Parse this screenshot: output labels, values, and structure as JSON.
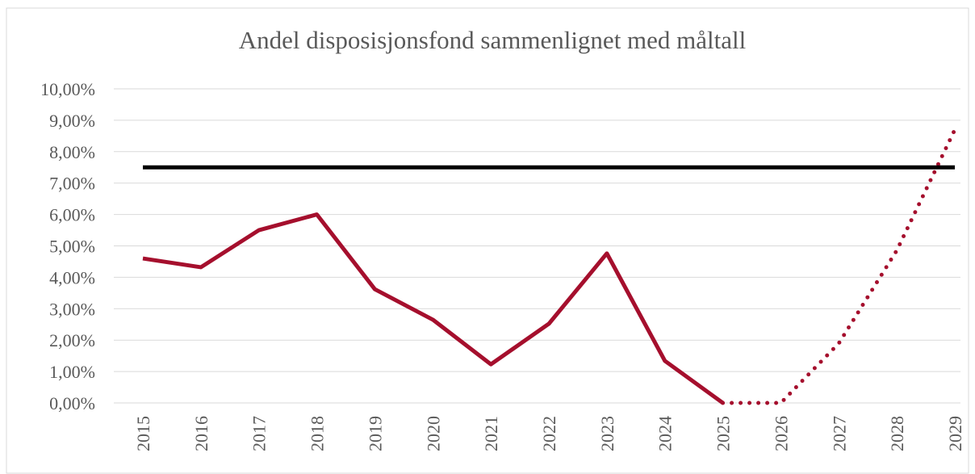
{
  "chart_data": {
    "type": "line",
    "title": "Andel disposisjonsfond sammenlignet med måltall",
    "categories": [
      "2015",
      "2016",
      "2017",
      "2018",
      "2019",
      "2020",
      "2021",
      "2022",
      "2023",
      "2024",
      "2025",
      "2026",
      "2027",
      "2028",
      "2029"
    ],
    "series": [
      {
        "color": "#a50f2d",
        "style": "solid",
        "values": [
          4.6,
          4.32,
          5.5,
          6.0,
          3.62,
          2.65,
          1.23,
          2.52,
          4.76,
          1.34,
          0,
          null,
          null,
          null,
          null
        ]
      },
      {
        "color": "#a50f2d",
        "style": "dotted",
        "values": [
          null,
          null,
          null,
          null,
          null,
          null,
          null,
          null,
          null,
          null,
          0,
          0,
          1.9,
          4.86,
          8.7
        ]
      },
      {
        "color": "#000000",
        "style": "solid",
        "values": [
          7.5,
          7.5,
          7.5,
          7.5,
          7.5,
          7.5,
          7.5,
          7.5,
          7.5,
          7.5,
          7.5,
          7.5,
          7.5,
          7.5,
          7.5
        ]
      }
    ],
    "ylim": [
      0,
      10
    ],
    "yticks": [
      {
        "value": 0,
        "label": "0,00%"
      },
      {
        "value": 1,
        "label": "1,00%"
      },
      {
        "value": 2,
        "label": "2,00%"
      },
      {
        "value": 3,
        "label": "3,00%"
      },
      {
        "value": 4,
        "label": "4,00%"
      },
      {
        "value": 5,
        "label": "5,00%"
      },
      {
        "value": 6,
        "label": "6,00%"
      },
      {
        "value": 7,
        "label": "7,00%"
      },
      {
        "value": 8,
        "label": "8,00%"
      },
      {
        "value": 9,
        "label": "9,00%"
      },
      {
        "value": 10,
        "label": "10,00%"
      }
    ],
    "grid": true
  }
}
